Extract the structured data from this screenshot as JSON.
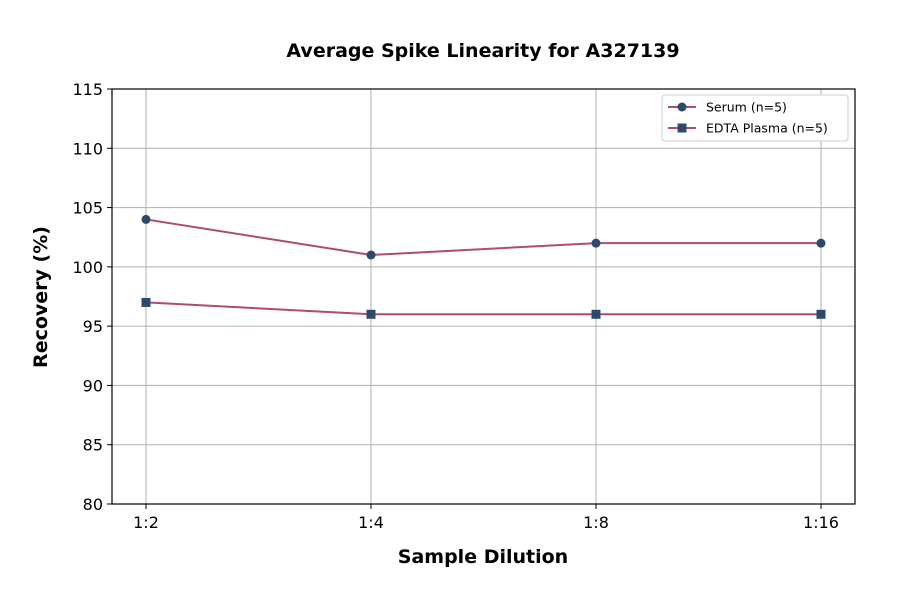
{
  "chart_data": {
    "type": "line",
    "title": "Average Spike Linearity for A327139",
    "xlabel": "Sample Dilution",
    "ylabel": "Recovery (%)",
    "categories": [
      "1:2",
      "1:4",
      "1:8",
      "1:16"
    ],
    "ylim": [
      80,
      115
    ],
    "yticks": [
      80,
      85,
      90,
      95,
      100,
      105,
      110,
      115
    ],
    "grid": true,
    "legend_position": "top-right",
    "series": [
      {
        "name": "Serum (n=5)",
        "values": [
          104,
          101,
          102,
          102
        ],
        "marker": "circle",
        "line_color": "#b04a72",
        "marker_color": "#2e4a6b"
      },
      {
        "name": "EDTA Plasma (n=5)",
        "values": [
          97,
          96,
          96,
          96
        ],
        "marker": "square",
        "line_color": "#b04a72",
        "marker_color": "#2e4a6b"
      }
    ]
  }
}
